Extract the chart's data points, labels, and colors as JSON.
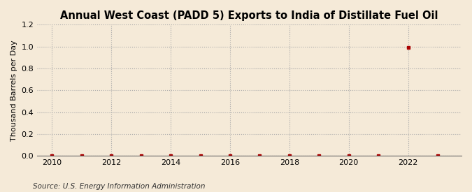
{
  "title": "Annual West Coast (PADD 5) Exports to India of Distillate Fuel Oil",
  "ylabel": "Thousand Barrels per Day",
  "source_text": "Source: U.S. Energy Information Administration",
  "background_color": "#f5ead8",
  "plot_background_color": "#f5ead8",
  "x_data": [
    2010,
    2011,
    2012,
    2013,
    2014,
    2015,
    2016,
    2017,
    2018,
    2019,
    2020,
    2021,
    2022,
    2023
  ],
  "y_data": [
    0.0,
    0.0,
    0.0,
    0.0,
    0.0,
    0.0,
    0.0,
    0.0,
    0.0,
    0.0,
    0.0,
    0.0,
    0.99,
    0.0
  ],
  "marker_color": "#aa0000",
  "marker_size": 3.5,
  "xlim": [
    2009.5,
    2023.8
  ],
  "ylim": [
    0.0,
    1.2
  ],
  "yticks": [
    0.0,
    0.2,
    0.4,
    0.6,
    0.8,
    1.0,
    1.2
  ],
  "xticks": [
    2010,
    2012,
    2014,
    2016,
    2018,
    2020,
    2022
  ],
  "grid_color": "#aaaaaa",
  "grid_style": ":",
  "title_fontsize": 10.5,
  "label_fontsize": 8,
  "tick_fontsize": 8,
  "source_fontsize": 7.5
}
